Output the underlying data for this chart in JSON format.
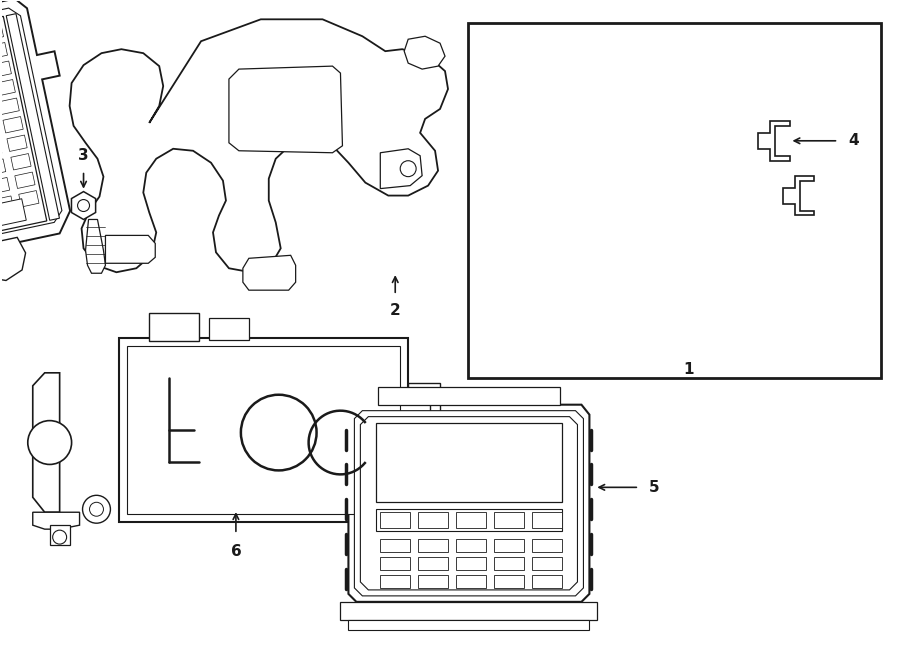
{
  "background_color": "#ffffff",
  "line_color": "#1a1a1a",
  "fig_width": 9.0,
  "fig_height": 6.62,
  "dpi": 100
}
